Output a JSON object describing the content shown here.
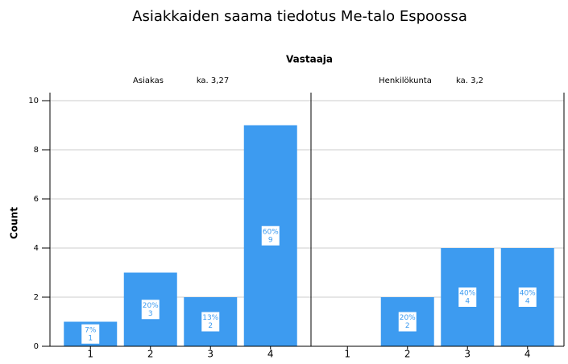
{
  "chart_data": {
    "type": "bar",
    "title": "Asiakkaiden saama tiedotus Me-talo Espoossa",
    "panel_title": "Vastaaja",
    "y_label": "Count",
    "ylim": [
      0,
      10
    ],
    "yticks": [
      0,
      2,
      4,
      6,
      8,
      10
    ],
    "grid": true,
    "color": "#3d9bf0",
    "panels": [
      {
        "name": "Asiakas",
        "note": "ka. 3,27",
        "categories": [
          "1",
          "2",
          "3",
          "4"
        ],
        "values": [
          1,
          3,
          2,
          9
        ],
        "percent_labels": [
          "7%",
          "20%",
          "13%",
          "60%"
        ]
      },
      {
        "name": "Henkilökunta",
        "note": "ka. 3,2",
        "categories": [
          "1",
          "2",
          "3",
          "4"
        ],
        "values": [
          0,
          2,
          4,
          4
        ],
        "percent_labels": [
          null,
          "20%",
          "40%",
          "40%"
        ]
      }
    ]
  }
}
